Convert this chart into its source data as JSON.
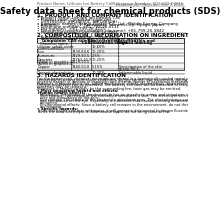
{
  "background_color": "#ffffff",
  "top_left_text": "Product Name: Lithium Ion Battery Cell",
  "top_right_line1": "Substance Number: SDS-049-00015",
  "top_right_line2": "Established / Revision: Dec.7.2010",
  "title": "Safety data sheet for chemical products (SDS)",
  "section1_header": "1. PRODUCT AND COMPANY IDENTIFICATION",
  "section1_lines": [
    "• Product name: Lithium Ion Battery Cell",
    "• Product code: Cylindrical-type cell",
    "   (IHR18650U, IHR18650L, IHR18650A)",
    "• Company name:   Sanyo Electric Co., Ltd., Mobile Energy Company",
    "• Address:        2-20-1  Kannondai, Tsurumi-City, Hyogo, Japan",
    "• Telephone number:  +81-799-26-4111",
    "• Fax number:  +81-799-26-4121",
    "• Emergency telephone number (daytime): +81-799-26-3842",
    "   (Night and holiday) +81-799-26-4101"
  ],
  "section2_header": "2. COMPOSITION / INFORMATION ON INGREDIENTS",
  "section2_intro": "• Substance or preparation: Preparation",
  "section2_sub": "• Information about the chemical nature of product:",
  "table_headers": [
    "Component",
    "CAS number",
    "Concentration /\nConcentration range",
    "Classification and\nhazard labeling"
  ],
  "table_col_header": "Chemical name",
  "table_rows": [
    [
      "Lithium cobalt oxide\n(LiMn/CoMnO4)",
      "-",
      "30-60%",
      "-"
    ],
    [
      "Iron",
      "7439-89-6",
      "10-20%",
      "-"
    ],
    [
      "Aluminum",
      "7429-90-5",
      "2-5%",
      "-"
    ],
    [
      "Graphite\n(Metal in graphite-1)\n(Al/Mn in graphite-1)",
      "77762-42-5\n7429-90-5",
      "10-25%",
      "-"
    ],
    [
      "Copper",
      "7440-50-8",
      "5-15%",
      "Sensitization of the skin\ngroup No.2"
    ],
    [
      "Organic electrolyte",
      "-",
      "10-20%",
      "Inflammable liquid"
    ]
  ],
  "section3_header": "3. HAZARDS IDENTIFICATION",
  "section3_lines": [
    "For the battery cell, chemical materials are stored in a hermetically-sealed metal case, designed to withstand",
    "temperatures during normal-use conditions. During normal use, as a result, during normal-use, there is no",
    "physical danger of ignition or explosion and thermo-danger of hazardous materials leakage.",
    "However, if exposed to a fire, added mechanical shocks, decomposes, when electric shock or by miss-use,",
    "the gas insidevent can be operated. The battery cell case will be breached of fire-patterns, hazardous",
    "materials may be released.",
    "Moreover, if heated strongly by the surrounding fire, toxic gas may be emitted."
  ],
  "section3_hazard_header": "• Most important hazard and effects:",
  "section3_human": "Human health effects:",
  "section3_human_lines": [
    "Inhalation: The release of the electrolyte has an anesthetic action and stimulates in respiratory tract.",
    "Skin contact: The release of the electrolyte stimulates a skin. The electrolyte skin contact causes a",
    "sore and stimulation on the skin.",
    "Eye contact: The release of the electrolyte stimulates eyes. The electrolyte eye contact causes a sore",
    "and stimulation on the eye. Especially, a substance that causes a strong inflammation of the eye is",
    "contained.",
    "Environmental effects: Since a battery cell remains in the environment, do not throw out it into the",
    "environment."
  ],
  "section3_specific_header": "• Specific hazards:",
  "section3_specific_lines": [
    "If the electrolyte contacts with water, it will generate detrimental hydrogen fluoride.",
    "Since the used electrolyte is inflammable liquid, do not bring close to fire."
  ]
}
